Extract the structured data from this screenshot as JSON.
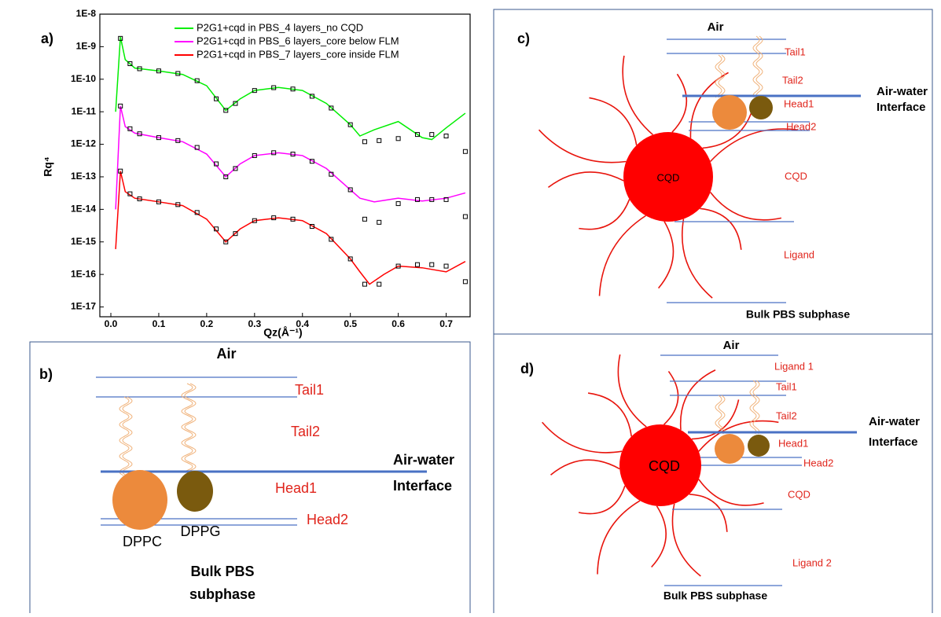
{
  "chart_data": {
    "type": "line",
    "label": "a)",
    "x_label": "Qz(Å⁻¹)",
    "y_label": "Rq⁴",
    "log_y": true,
    "legend": "upper right",
    "xlim": [
      -0.023,
      0.75
    ],
    "ylim": [
      5e-18,
      1e-08
    ],
    "xticks": [
      {
        "value": 0,
        "label": "0.0"
      },
      0.1,
      0.2,
      0.3,
      0.4,
      0.5,
      0.6,
      0.7
    ],
    "yticks": [
      {
        "value": 1e-08,
        "label": "1E-8"
      },
      {
        "value": 1e-09,
        "label": "1E-9"
      },
      {
        "value": 1e-10,
        "label": "1E-10"
      },
      {
        "value": 1e-11,
        "label": "1E-11"
      },
      {
        "value": 1e-12,
        "label": "1E-12"
      },
      {
        "value": 1e-13,
        "label": "1E-13"
      },
      {
        "value": 1e-14,
        "label": "1E-14"
      },
      {
        "value": 1e-15,
        "label": "1E-15"
      },
      {
        "value": 1e-16,
        "label": "1E-16"
      },
      {
        "value": 1e-17,
        "label": "1E-17"
      }
    ],
    "series": [
      {
        "name": "P2G1+cqd in PBS_4 layers_no CQD",
        "color": "#00ee00",
        "x": [
          0.01,
          0.02,
          0.03,
          0.05,
          0.1,
          0.15,
          0.2,
          0.24,
          0.27,
          0.3,
          0.35,
          0.4,
          0.45,
          0.5,
          0.52,
          0.55,
          0.6,
          0.65,
          0.67,
          0.7,
          0.74
        ],
        "values": [
          1e-11,
          2e-09,
          4e-10,
          2.2e-10,
          1.8e-10,
          1.4e-10,
          6.3e-11,
          1.1e-11,
          2.5e-11,
          4.5e-11,
          5.6e-11,
          4.5e-11,
          1.8e-11,
          4e-12,
          1.8e-12,
          2.8e-12,
          5e-12,
          1.6e-12,
          1.4e-12,
          3.2e-12,
          9e-12
        ]
      },
      {
        "name": "P2G1+cqd in PBS_6 layers_core below FLM",
        "color": "#ff00ff",
        "x": [
          0.01,
          0.02,
          0.03,
          0.05,
          0.1,
          0.15,
          0.2,
          0.24,
          0.27,
          0.3,
          0.35,
          0.4,
          0.45,
          0.5,
          0.52,
          0.55,
          0.6,
          0.65,
          0.7,
          0.74
        ],
        "values": [
          1e-14,
          1.5e-11,
          3.5e-12,
          2.2e-12,
          1.6e-12,
          1.2e-12,
          5e-13,
          1e-13,
          2.5e-13,
          4.5e-13,
          5.5e-13,
          4.5e-13,
          1.8e-13,
          4e-14,
          2.2e-14,
          1.7e-14,
          2.2e-14,
          1.8e-14,
          2.2e-14,
          3.2e-14
        ]
      },
      {
        "name": "P2G1+cqd in PBS_7 layers_core inside FLM",
        "color": "#ff0000",
        "x": [
          0.01,
          0.02,
          0.03,
          0.05,
          0.1,
          0.15,
          0.2,
          0.24,
          0.27,
          0.3,
          0.35,
          0.4,
          0.45,
          0.5,
          0.52,
          0.54,
          0.57,
          0.6,
          0.65,
          0.7,
          0.74
        ],
        "values": [
          6e-16,
          1.5e-13,
          3.5e-14,
          2.2e-14,
          1.7e-14,
          1.3e-14,
          5e-15,
          1e-15,
          2.5e-15,
          4.5e-15,
          5.5e-15,
          4.5e-15,
          1.8e-15,
          3e-16,
          1.2e-16,
          5e-17,
          1e-16,
          1.8e-16,
          1.6e-16,
          1.2e-16,
          2.5e-16
        ]
      }
    ],
    "measured": [
      {
        "x": [
          0.02,
          0.04,
          0.06,
          0.1,
          0.14,
          0.18,
          0.22,
          0.24,
          0.26,
          0.3,
          0.34,
          0.38,
          0.42,
          0.46,
          0.5,
          0.53,
          0.56,
          0.6,
          0.64,
          0.67,
          0.7,
          0.74
        ],
        "values": [
          1.8e-09,
          3e-10,
          2.1e-10,
          1.8e-10,
          1.5e-10,
          9e-11,
          2.5e-11,
          1.1e-11,
          1.8e-11,
          4.5e-11,
          5.5e-11,
          5e-11,
          3e-11,
          1.3e-11,
          4e-12,
          1.2e-12,
          1.3e-12,
          1.5e-12,
          2e-12,
          2e-12,
          1.8e-12,
          6e-13
        ]
      },
      {
        "x": [
          0.02,
          0.04,
          0.06,
          0.1,
          0.14,
          0.18,
          0.22,
          0.24,
          0.26,
          0.3,
          0.34,
          0.38,
          0.42,
          0.46,
          0.5,
          0.53,
          0.56,
          0.6,
          0.64,
          0.67,
          0.7,
          0.74
        ],
        "values": [
          1.5e-11,
          3e-12,
          2.1e-12,
          1.6e-12,
          1.3e-12,
          8e-13,
          2.5e-13,
          1e-13,
          1.8e-13,
          4.5e-13,
          5.5e-13,
          5e-13,
          3e-13,
          1.2e-13,
          4e-14,
          5e-15,
          4e-15,
          1.5e-14,
          2e-14,
          2e-14,
          2e-14,
          6e-15
        ]
      },
      {
        "x": [
          0.02,
          0.04,
          0.06,
          0.1,
          0.14,
          0.18,
          0.22,
          0.24,
          0.26,
          0.3,
          0.34,
          0.38,
          0.42,
          0.46,
          0.5,
          0.53,
          0.56,
          0.6,
          0.64,
          0.67,
          0.7,
          0.74
        ],
        "values": [
          1.5e-13,
          3e-14,
          2.1e-14,
          1.7e-14,
          1.4e-14,
          8e-15,
          2.5e-15,
          1e-15,
          1.8e-15,
          4.5e-15,
          5.5e-15,
          5e-15,
          3e-15,
          1.2e-15,
          3e-16,
          5e-17,
          5e-17,
          1.8e-16,
          2e-16,
          2e-16,
          1.8e-16,
          6e-17
        ]
      }
    ]
  },
  "panel_b": {
    "label": "b)",
    "air": "Air",
    "tail1": "Tail1",
    "tail2": "Tail2",
    "interface": [
      "Air-water",
      "Interface"
    ],
    "head1": "Head1",
    "head2": "Head2",
    "dppc": "DPPC",
    "dppg": "DPPG",
    "bulk": [
      "Bulk PBS",
      "subphase"
    ]
  },
  "panel_c": {
    "label": "c)",
    "air": "Air",
    "tail1": "Tail1",
    "tail2": "Tail2",
    "interface": [
      "Air-water",
      "Interface"
    ],
    "head1": "Head1",
    "head2": "Head2",
    "core": "CQD",
    "cqd": "CQD",
    "ligand": "Ligand",
    "bulk": "Bulk PBS subphase"
  },
  "panel_d": {
    "label": "d)",
    "air": "Air",
    "ligand1": "Ligand 1",
    "tail1": "Tail1",
    "tail2": "Tail2",
    "interface": [
      "Air-water",
      "Interface"
    ],
    "head1": "Head1",
    "head2": "Head2",
    "core": "CQD",
    "cqd": "CQD",
    "ligand2": "Ligand 2",
    "bulk": "Bulk PBS subphase"
  }
}
